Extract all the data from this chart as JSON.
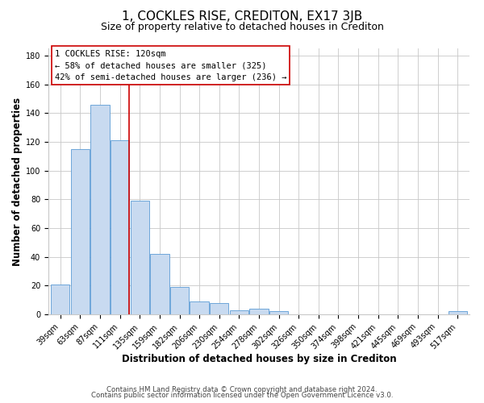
{
  "title": "1, COCKLES RISE, CREDITON, EX17 3JB",
  "subtitle": "Size of property relative to detached houses in Crediton",
  "xlabel": "Distribution of detached houses by size in Crediton",
  "ylabel": "Number of detached properties",
  "bar_labels": [
    "39sqm",
    "63sqm",
    "87sqm",
    "111sqm",
    "135sqm",
    "159sqm",
    "182sqm",
    "206sqm",
    "230sqm",
    "254sqm",
    "278sqm",
    "302sqm",
    "326sqm",
    "350sqm",
    "374sqm",
    "398sqm",
    "421sqm",
    "445sqm",
    "469sqm",
    "493sqm",
    "517sqm"
  ],
  "bar_values": [
    21,
    115,
    146,
    121,
    79,
    42,
    19,
    9,
    8,
    3,
    4,
    2,
    0,
    0,
    0,
    0,
    0,
    0,
    0,
    0,
    2
  ],
  "bar_color": "#c8daf0",
  "bar_edge_color": "#5b9bd5",
  "vline_x_index": 3,
  "vline_color": "#cc0000",
  "ylim": [
    0,
    185
  ],
  "yticks": [
    0,
    20,
    40,
    60,
    80,
    100,
    120,
    140,
    160,
    180
  ],
  "annotation_title": "1 COCKLES RISE: 120sqm",
  "annotation_line1": "← 58% of detached houses are smaller (325)",
  "annotation_line2": "42% of semi-detached houses are larger (236) →",
  "footer_line1": "Contains HM Land Registry data © Crown copyright and database right 2024.",
  "footer_line2": "Contains public sector information licensed under the Open Government Licence v3.0.",
  "background_color": "#ffffff",
  "grid_color": "#c8c8c8",
  "title_fontsize": 11,
  "subtitle_fontsize": 9,
  "axis_label_fontsize": 8.5,
  "tick_fontsize": 7,
  "annotation_fontsize": 7.5,
  "footer_fontsize": 6.2
}
